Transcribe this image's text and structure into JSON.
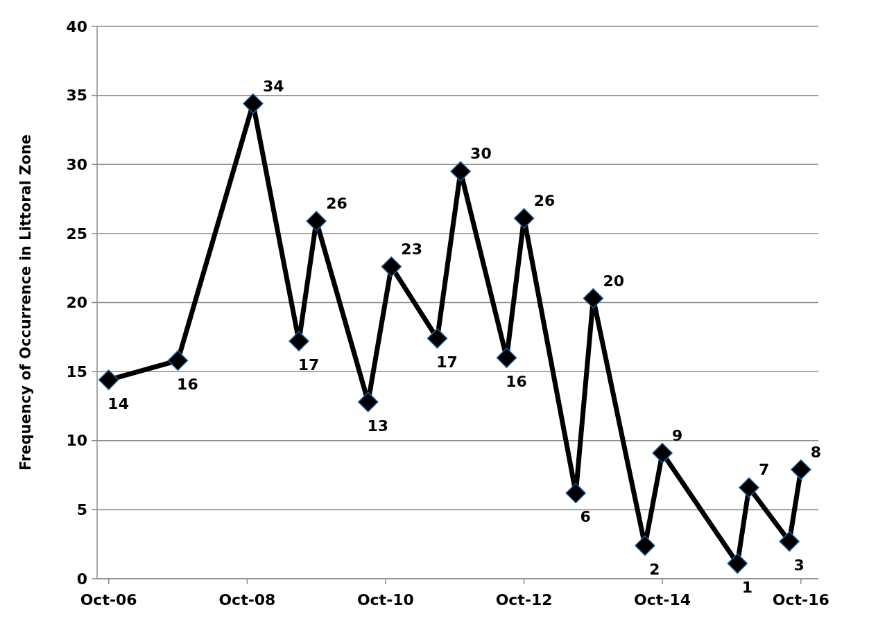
{
  "chart_data": {
    "type": "line",
    "ylabel": "Frequency of Occurrence in Littoral Zone",
    "x": [
      "2006-10",
      "2007-10",
      "2008-11",
      "2009-07",
      "2009-10",
      "2010-07",
      "2010-11",
      "2011-07",
      "2011-11",
      "2012-07",
      "2012-10",
      "2013-07",
      "2013-10",
      "2014-07",
      "2014-10",
      "2015-11",
      "2016-01",
      "2016-08",
      "2016-10"
    ],
    "series": [
      {
        "color": "#000000",
        "values": [
          14.4,
          15.8,
          34.4,
          17.2,
          25.9,
          12.8,
          22.6,
          17.4,
          29.5,
          16.0,
          26.1,
          6.2,
          20.3,
          2.4,
          9.1,
          1.1,
          6.6,
          2.7,
          7.9
        ],
        "value_labels": [
          "14",
          "16",
          "34",
          "17",
          "26",
          "13",
          "23",
          "17",
          "30",
          "16",
          "26",
          "6",
          "20",
          "2",
          "9",
          "1",
          "7",
          "3",
          "8"
        ]
      }
    ],
    "xlim": [
      "2006-08",
      "2017-01"
    ],
    "xticks": [
      {
        "value": "2006-10",
        "label": "Oct-06"
      },
      {
        "value": "2008-10",
        "label": "Oct-08"
      },
      {
        "value": "2010-10",
        "label": "Oct-10"
      },
      {
        "value": "2012-10",
        "label": "Oct-12"
      },
      {
        "value": "2014-10",
        "label": "Oct-14"
      },
      {
        "value": "2016-10",
        "label": "Oct-16"
      }
    ],
    "ylim": [
      0,
      40
    ],
    "yticks": [
      0,
      5,
      10,
      15,
      20,
      25,
      30,
      35,
      40
    ],
    "grid": "y",
    "marker": "diamond",
    "line_style": "solid"
  }
}
